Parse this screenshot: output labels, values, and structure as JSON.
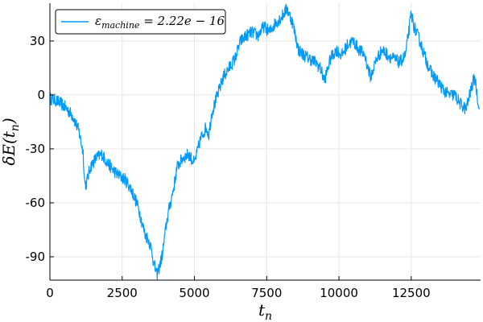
{
  "chart_data": {
    "type": "line",
    "xlabel": {
      "base": "t",
      "sub": "n"
    },
    "ylabel": {
      "pre": "δE(t",
      "sub": "n",
      "post": ")"
    },
    "xlim": [
      0,
      14900
    ],
    "ylim": [
      -103,
      51
    ],
    "xticks": [
      0,
      2500,
      5000,
      7500,
      10000,
      12500
    ],
    "xtick_labels": [
      "0",
      "2500",
      "5000",
      "7500",
      "10000",
      "12500"
    ],
    "yticks": [
      30,
      0,
      -30,
      -60,
      -90
    ],
    "ytick_labels": [
      "30",
      "0",
      "-30",
      "-60",
      "-90"
    ],
    "grid": true,
    "legend_position": "top-left",
    "series": [
      {
        "name_parts": {
          "base": "ε",
          "sub": "machine",
          "rest": " = 2.22e − 16"
        },
        "color": "#009af9",
        "x": [
          0,
          200,
          400,
          600,
          800,
          1000,
          1150,
          1200,
          1250,
          1400,
          1600,
          1800,
          2000,
          2200,
          2400,
          2600,
          2800,
          3000,
          3100,
          3200,
          3300,
          3400,
          3500,
          3600,
          3700,
          3800,
          3900,
          4000,
          4100,
          4200,
          4300,
          4400,
          4600,
          4800,
          5000,
          5200,
          5400,
          5500,
          5600,
          5800,
          6000,
          6200,
          6400,
          6600,
          6800,
          7000,
          7200,
          7400,
          7600,
          7800,
          8000,
          8200,
          8400,
          8600,
          8800,
          9000,
          9200,
          9350,
          9500,
          9700,
          9900,
          10100,
          10300,
          10500,
          10700,
          10900,
          11000,
          11100,
          11300,
          11500,
          11700,
          11900,
          12100,
          12300,
          12500,
          12600,
          12800,
          13000,
          13200,
          13400,
          13600,
          13800,
          14000,
          14200,
          14400,
          14600,
          14700,
          14850
        ],
        "values": [
          -2,
          -3,
          -5,
          -8,
          -12,
          -20,
          -32,
          -48,
          -50,
          -40,
          -35,
          -33,
          -38,
          -42,
          -45,
          -47,
          -52,
          -60,
          -65,
          -72,
          -78,
          -80,
          -85,
          -94,
          -100,
          -95,
          -88,
          -75,
          -65,
          -58,
          -50,
          -40,
          -35,
          -33,
          -38,
          -25,
          -18,
          -22,
          -10,
          0,
          10,
          15,
          20,
          30,
          33,
          35,
          33,
          38,
          35,
          40,
          43,
          48,
          40,
          25,
          22,
          20,
          18,
          15,
          8,
          20,
          25,
          22,
          28,
          30,
          25,
          22,
          15,
          10,
          20,
          25,
          22,
          20,
          18,
          22,
          45,
          38,
          30,
          20,
          12,
          8,
          3,
          0,
          0,
          -5,
          -8,
          5,
          10,
          -8
        ]
      }
    ]
  }
}
